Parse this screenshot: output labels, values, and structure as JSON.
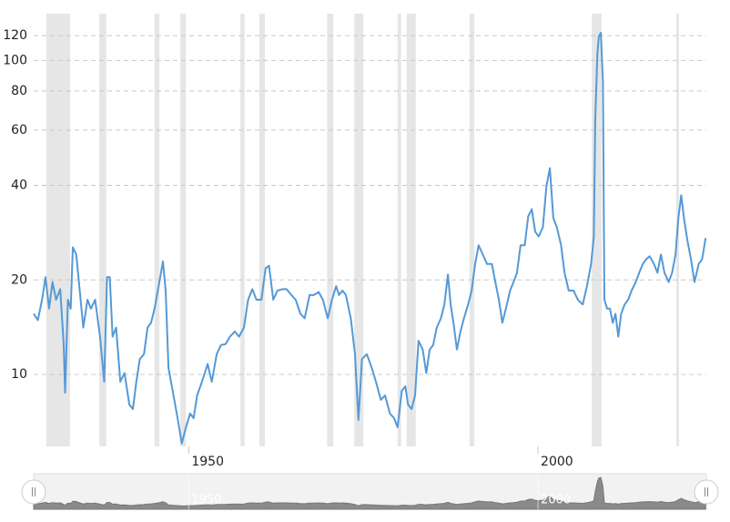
{
  "chart_data": {
    "type": "line",
    "color": "#5599d6",
    "log_scale": true,
    "grid": true,
    "band_color": "#e6e6e6",
    "xlim": [
      1927.8,
      2024.1
    ],
    "xticks": [
      1950,
      2000
    ],
    "ylim": [
      5.9,
      141
    ],
    "yticks": [
      10,
      20,
      40,
      60,
      80,
      100,
      120
    ],
    "recessions": [
      [
        1929.6,
        1933.0
      ],
      [
        1937.2,
        1938.2
      ],
      [
        1945.1,
        1945.8
      ],
      [
        1948.8,
        1949.6
      ],
      [
        1957.4,
        1958.0
      ],
      [
        1960.1,
        1960.9
      ],
      [
        1969.8,
        1970.7
      ],
      [
        1973.7,
        1975.0
      ],
      [
        1979.9,
        1980.4
      ],
      [
        1981.2,
        1982.5
      ],
      [
        1990.2,
        1990.9
      ],
      [
        2007.7,
        2009.1
      ],
      [
        2019.8,
        2020.2
      ]
    ],
    "x": [
      1927.8,
      1928.4,
      1929.0,
      1929.5,
      1930.0,
      1930.5,
      1931.0,
      1931.6,
      1932.1,
      1932.3,
      1932.7,
      1933.1,
      1933.4,
      1933.9,
      1934.4,
      1934.9,
      1935.5,
      1936.0,
      1936.6,
      1937.3,
      1937.9,
      1938.3,
      1938.7,
      1939.1,
      1939.6,
      1940.2,
      1940.8,
      1941.5,
      1942.0,
      1942.5,
      1943.0,
      1943.6,
      1944.1,
      1944.6,
      1945.1,
      1945.8,
      1946.3,
      1946.7,
      1947.1,
      1947.7,
      1948.4,
      1949.0,
      1949.6,
      1950.2,
      1950.7,
      1951.2,
      1951.9,
      1952.7,
      1953.3,
      1954.0,
      1954.6,
      1955.3,
      1955.9,
      1956.6,
      1957.2,
      1957.9,
      1958.5,
      1959.1,
      1959.7,
      1960.4,
      1961.0,
      1961.5,
      1962.1,
      1962.7,
      1963.4,
      1964.0,
      1964.7,
      1965.3,
      1966.0,
      1966.6,
      1967.3,
      1967.9,
      1968.6,
      1969.2,
      1969.9,
      1970.5,
      1971.1,
      1971.5,
      1972.0,
      1972.5,
      1973.2,
      1973.8,
      1974.3,
      1974.8,
      1975.5,
      1976.2,
      1976.8,
      1977.5,
      1978.1,
      1978.8,
      1979.4,
      1979.9,
      1980.5,
      1981.0,
      1981.4,
      1981.9,
      1982.4,
      1982.9,
      1983.5,
      1984.0,
      1984.5,
      1985.0,
      1985.5,
      1986.1,
      1986.6,
      1987.1,
      1987.5,
      1987.9,
      1988.4,
      1988.9,
      1989.4,
      1990.0,
      1990.5,
      1991.0,
      1991.5,
      1992.1,
      1992.7,
      1993.4,
      1993.9,
      1994.4,
      1994.9,
      1995.4,
      1996.0,
      1996.5,
      1997.0,
      1997.5,
      1998.1,
      1998.6,
      1999.1,
      1999.6,
      2000.1,
      2000.7,
      2001.2,
      2001.7,
      2002.2,
      2002.7,
      2003.3,
      2003.8,
      2004.4,
      2005.1,
      2005.7,
      2006.4,
      2007.0,
      2007.6,
      2008.0,
      2008.2,
      2008.5,
      2008.7,
      2009.0,
      2009.3,
      2009.5,
      2009.9,
      2010.3,
      2010.7,
      2011.1,
      2011.5,
      2011.9,
      2012.4,
      2012.9,
      2013.4,
      2014.0,
      2014.5,
      2015.0,
      2015.5,
      2016.0,
      2016.6,
      2017.1,
      2017.6,
      2018.1,
      2018.7,
      2019.2,
      2019.7,
      2020.1,
      2020.5,
      2020.9,
      2021.4,
      2021.9,
      2022.4,
      2023.0,
      2023.5,
      2024.0
    ],
    "values": [
      15.6,
      14.9,
      17.3,
      20.4,
      16.2,
      19.7,
      17.3,
      18.7,
      12.4,
      8.75,
      17.3,
      16.2,
      25.4,
      24.1,
      18.5,
      14.1,
      17.3,
      16.2,
      17.3,
      13.2,
      9.48,
      20.4,
      20.4,
      13.2,
      14.1,
      9.48,
      10.1,
      8.02,
      7.76,
      9.48,
      11.2,
      11.6,
      14.1,
      14.6,
      16.2,
      19.7,
      22.9,
      18.5,
      10.5,
      8.87,
      7.26,
      6.03,
      6.79,
      7.51,
      7.26,
      8.58,
      9.48,
      10.8,
      9.48,
      11.6,
      12.4,
      12.5,
      13.2,
      13.7,
      13.2,
      14.1,
      17.3,
      18.7,
      17.3,
      17.3,
      21.8,
      22.2,
      17.3,
      18.5,
      18.7,
      18.7,
      17.9,
      17.3,
      15.6,
      15.1,
      17.9,
      17.9,
      18.3,
      17.3,
      15.1,
      17.3,
      19.1,
      17.9,
      18.5,
      17.9,
      15.1,
      11.6,
      7.16,
      11.2,
      11.6,
      10.5,
      9.48,
      8.3,
      8.58,
      7.51,
      7.26,
      6.79,
      8.87,
      9.17,
      8.02,
      7.76,
      8.58,
      12.8,
      12.0,
      10.1,
      12.0,
      12.4,
      14.1,
      15.1,
      16.7,
      20.8,
      16.7,
      14.6,
      12.0,
      13.7,
      15.1,
      16.7,
      18.5,
      22.5,
      25.8,
      24.1,
      22.5,
      22.5,
      19.7,
      17.3,
      14.6,
      16.2,
      18.5,
      19.7,
      21.1,
      25.8,
      25.8,
      31.9,
      33.6,
      28.5,
      27.5,
      29.4,
      39.7,
      45.4,
      31.5,
      29.4,
      25.8,
      21.1,
      18.5,
      18.5,
      17.3,
      16.7,
      19.1,
      22.5,
      27.5,
      65.5,
      104.4,
      119,
      122.5,
      85.5,
      17.3,
      16.2,
      16.2,
      14.6,
      15.6,
      13.2,
      15.6,
      16.7,
      17.3,
      18.5,
      19.7,
      21.1,
      22.5,
      23.3,
      23.8,
      22.5,
      21.1,
      24.1,
      21.1,
      19.7,
      21.1,
      24.1,
      31.5,
      37.2,
      31.5,
      26.6,
      23.3,
      19.7,
      22.5,
      23.3,
      27.2
    ]
  }
}
